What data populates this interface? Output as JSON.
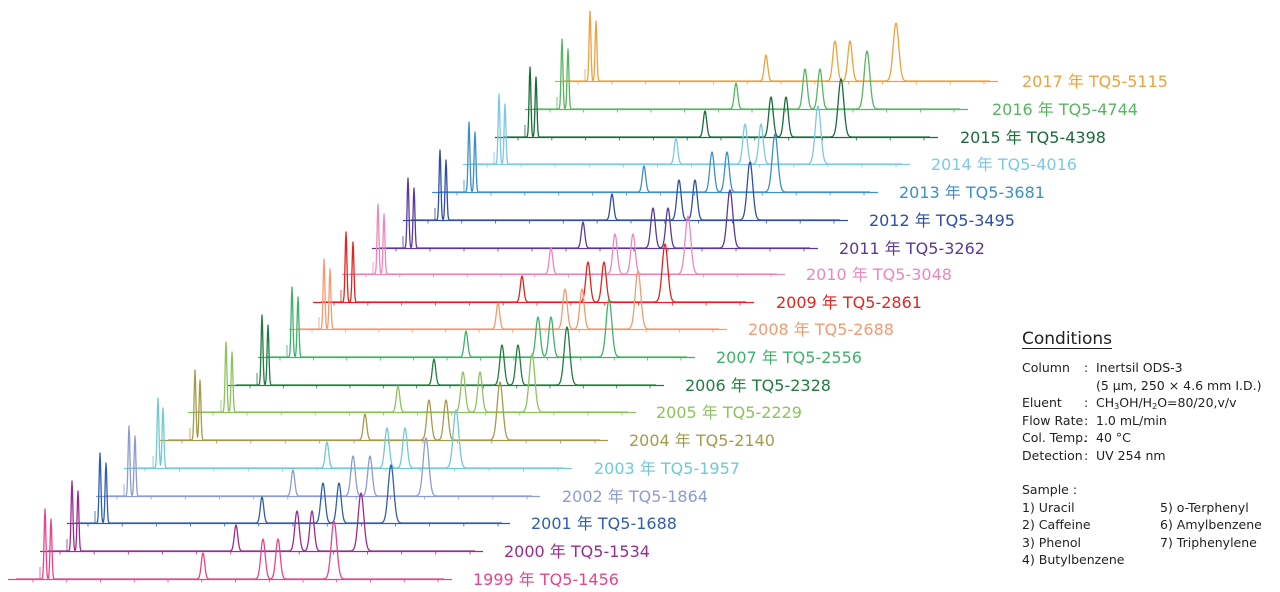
{
  "chart_data": {
    "type": "line",
    "series": [
      {
        "name": "1999 年 TQ5-1456",
        "color": "#e8448a",
        "peaks": [
          45,
          51,
          203,
          263,
          278,
          334
        ]
      },
      {
        "name": "2000 年 TQ5-1534",
        "color": "#9b2a93",
        "peaks": [
          72,
          78,
          236,
          297,
          312,
          361
        ]
      },
      {
        "name": "2001 年 TQ5-1688",
        "color": "#2e5fad",
        "peaks": [
          100,
          106,
          262,
          323,
          339,
          391
        ]
      },
      {
        "name": "2002 年 TQ5-1864",
        "color": "#8e9bd0",
        "peaks": [
          129,
          135,
          293,
          353,
          370,
          426
        ]
      },
      {
        "name": "2003 年 TQ5-1957",
        "color": "#6fcad3",
        "peaks": [
          158,
          163,
          327,
          387,
          405,
          456
        ]
      },
      {
        "name": "2004 年 TQ5-2140",
        "color": "#a59a4c",
        "peaks": [
          195,
          200,
          365,
          429,
          446,
          500
        ]
      },
      {
        "name": "2005 年 TQ5-2229",
        "color": "#8dc35d",
        "peaks": [
          226,
          232,
          398,
          463,
          480,
          532
        ]
      },
      {
        "name": "2006 年 TQ5-2328",
        "color": "#1f7d3f",
        "peaks": [
          262,
          268,
          434,
          502,
          518,
          567
        ]
      },
      {
        "name": "2007 年 TQ5-2556",
        "color": "#3fb26a",
        "peaks": [
          292,
          298,
          466,
          538,
          551,
          609
        ]
      },
      {
        "name": "2008 年 TQ5-2688",
        "color": "#f59a70",
        "peaks": [
          324,
          330,
          498,
          565,
          582,
          638
        ]
      },
      {
        "name": "2009 年 TQ5-2861",
        "color": "#e3241f",
        "peaks": [
          346,
          353,
          522,
          588,
          604,
          665
        ]
      },
      {
        "name": "2010 年 TQ5-3048",
        "color": "#ef86bb",
        "peaks": [
          378,
          384,
          551,
          615,
          633,
          688
        ]
      },
      {
        "name": "2011 年 TQ5-3262",
        "color": "#5a3a96",
        "peaks": [
          408,
          414,
          583,
          653,
          668,
          730
        ]
      },
      {
        "name": "2012 年 TQ5-3495",
        "color": "#2e4fa3",
        "peaks": [
          440,
          446,
          612,
          679,
          695,
          750
        ]
      },
      {
        "name": "2013 年 TQ5-3681",
        "color": "#3d8fc8",
        "peaks": [
          469,
          475,
          644,
          712,
          727,
          775
        ]
      },
      {
        "name": "2014 年 TQ5-4016",
        "color": "#7cc8e8",
        "peaks": [
          499,
          505,
          676,
          745,
          761,
          818
        ]
      },
      {
        "name": "2015 年 TQ5-4398",
        "color": "#1a6b3a",
        "peaks": [
          530,
          536,
          705,
          771,
          786,
          841
        ]
      },
      {
        "name": "2016 年 TQ5-4744",
        "color": "#56b660",
        "peaks": [
          562,
          568,
          736,
          805,
          820,
          867
        ]
      },
      {
        "name": "2017 年 TQ5-5115",
        "color": "#f0a03c",
        "peaks": [
          590,
          596,
          766,
          835,
          850,
          896
        ]
      }
    ]
  },
  "conditions": {
    "title": "Conditions",
    "column_label": "Column",
    "column_value": "Inertsil ODS-3",
    "column_value2": "(5 µm, 250 × 4.6 mm I.D.)",
    "eluent_label": "Eluent",
    "eluent_a": "CH",
    "eluent_sub1": "3",
    "eluent_b": "OH/H",
    "eluent_sub2": "2",
    "eluent_c": "O=80/20,v/v",
    "flow_label": "Flow Rate",
    "flow_value": "1.0 mL/min",
    "temp_label": "Col. Temp.",
    "temp_value": "40 °C",
    "detection_label": "Detection",
    "detection_value": "UV 254 nm",
    "separator": ":",
    "sample_label": "Sample :",
    "samples": [
      "1) Uracil",
      "5) o-Terphenyl",
      "2) Caffeine",
      "6) Amylbenzene",
      "3) Phenol",
      "7) Triphenylene",
      "4) Butylbenzene",
      ""
    ]
  }
}
